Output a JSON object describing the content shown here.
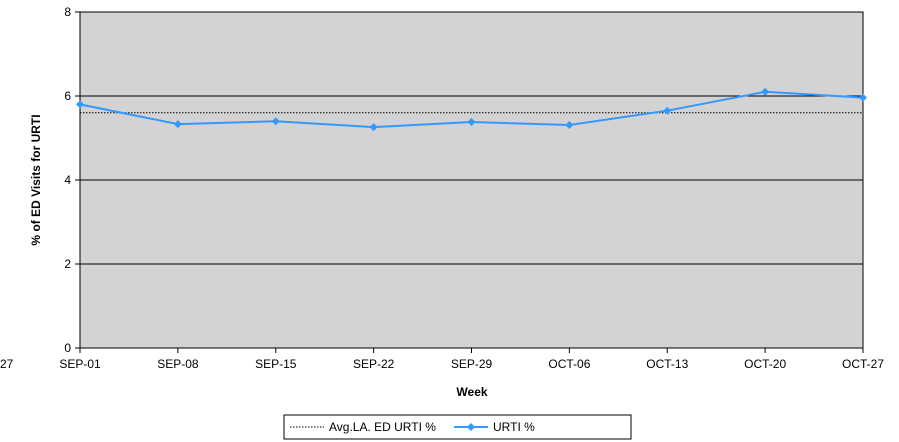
{
  "chart_data": {
    "type": "line",
    "title": "",
    "xlabel": "Week",
    "ylabel": "% of ED Visits for URTI",
    "categories": [
      "SEP-01",
      "SEP-08",
      "SEP-15",
      "SEP-22",
      "SEP-29",
      "OCT-06",
      "OCT-13",
      "OCT-20",
      "OCT-27"
    ],
    "ylim": [
      0,
      8
    ],
    "yticks": [
      0,
      2,
      4,
      6,
      8
    ],
    "grid": "horizontal major",
    "plot_background": "#d3d3d3",
    "series": [
      {
        "name": "Avg.LA. ED URTI %",
        "style": "dotted",
        "color": "#000000",
        "values": [
          5.6,
          5.6,
          5.6,
          5.6,
          5.6,
          5.6,
          5.6,
          5.6,
          5.6
        ]
      },
      {
        "name": "URTI %",
        "style": "line-diamond",
        "color": "#3399ff",
        "values": [
          5.8,
          5.33,
          5.4,
          5.26,
          5.38,
          5.31,
          5.65,
          6.1,
          5.96
        ]
      }
    ],
    "legend_position": "bottom-center",
    "edge_fragment": "27"
  }
}
